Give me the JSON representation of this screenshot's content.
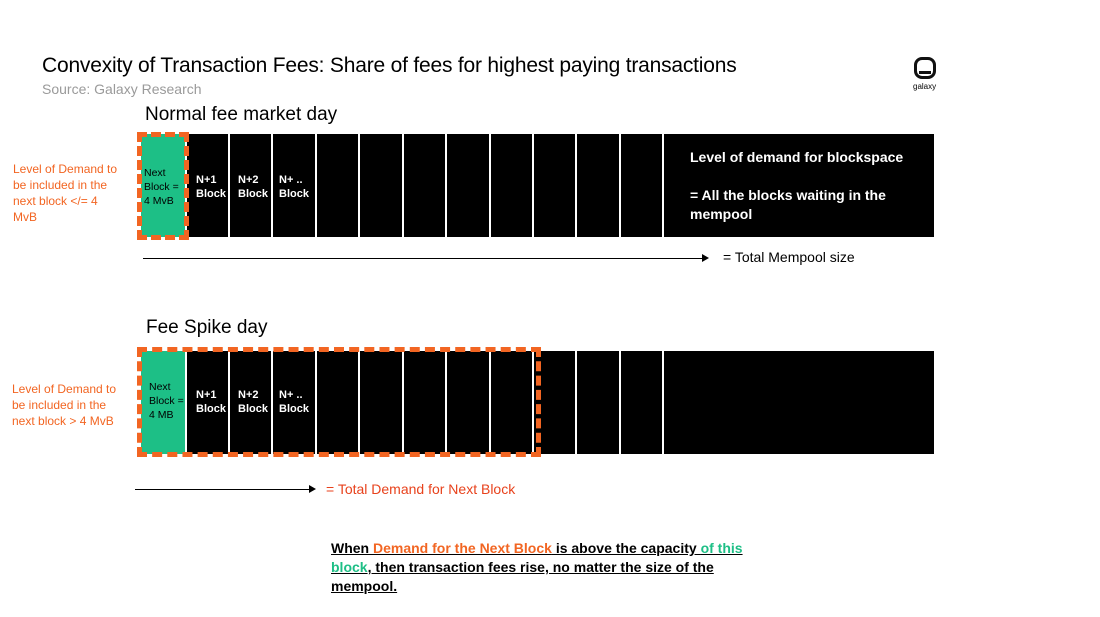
{
  "header": {
    "title": "Convexity of Transaction Fees: Share of fees for highest paying transactions",
    "source": "Source: Galaxy Research",
    "logo_text": "galaxy"
  },
  "colors": {
    "accent": "#f26522",
    "green": "#1dbf86",
    "block": "#000000"
  },
  "normal": {
    "title": "Normal fee market day",
    "side_label": "Level of Demand to be included in the next block </= 4 MvB",
    "next_block": "Next Block = 4 MvB",
    "n1": "N+1 Block",
    "n2": "N+2 Block",
    "nn": "N+ .. Block",
    "mempool_heading": "Level of demand for blockspace",
    "mempool_text": "= All the blocks waiting in the mempool",
    "arrow_label": "= Total Mempool size"
  },
  "spike": {
    "title": "Fee Spike day",
    "side_label": "Level of Demand to be included in the next block > 4 MvB",
    "next_block": "Next Block = 4 MB",
    "n1": "N+1 Block",
    "n2": "N+2 Block",
    "nn": "N+ .. Block",
    "arrow_label": "= Total Demand for Next Block"
  },
  "footer": {
    "p1": "When ",
    "p2": "Demand for the Next Block",
    "p3": " is above the capacity ",
    "p4": "of this block",
    "p5": ", then transaction fees rise, no matter the size of the mempool."
  }
}
